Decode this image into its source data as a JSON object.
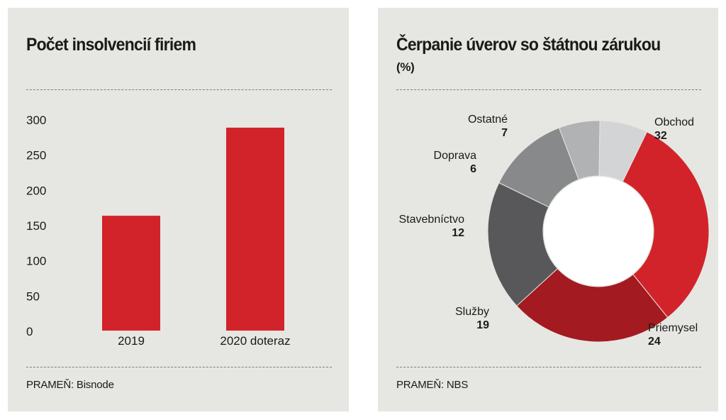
{
  "left_panel": {
    "title": "Počet insolvencií firiem",
    "source": "PRAMEŇ: Bisnode"
  },
  "right_panel": {
    "title": "Čerpanie úverov so štátnou zárukou",
    "unit": "(%)",
    "source": "PRAMEŇ: NBS"
  },
  "chart_data": [
    {
      "type": "bar",
      "title": "Počet insolvencií firiem",
      "categories": [
        "2019",
        "2020 doteraz"
      ],
      "values": [
        163,
        288
      ],
      "ylim": [
        0,
        300
      ],
      "yticks": [
        0,
        50,
        100,
        150,
        200,
        250,
        300
      ],
      "grid": false,
      "color": "#d2232a"
    },
    {
      "type": "pie",
      "title": "Čerpanie úverov so štátnou zárukou",
      "unit": "(%)",
      "donut": true,
      "slices": [
        {
          "label": "Obchod",
          "value": 32,
          "color": "#d2232a"
        },
        {
          "label": "Priemysel",
          "value": 24,
          "color": "#a31a21"
        },
        {
          "label": "Služby",
          "value": 19,
          "color": "#58585a"
        },
        {
          "label": "Stavebníctvo",
          "value": 12,
          "color": "#88898b"
        },
        {
          "label": "Doprava",
          "value": 6,
          "color": "#b1b2b3"
        },
        {
          "label": "Ostatné",
          "value": 7,
          "color": "#d3d4d5"
        }
      ]
    }
  ]
}
